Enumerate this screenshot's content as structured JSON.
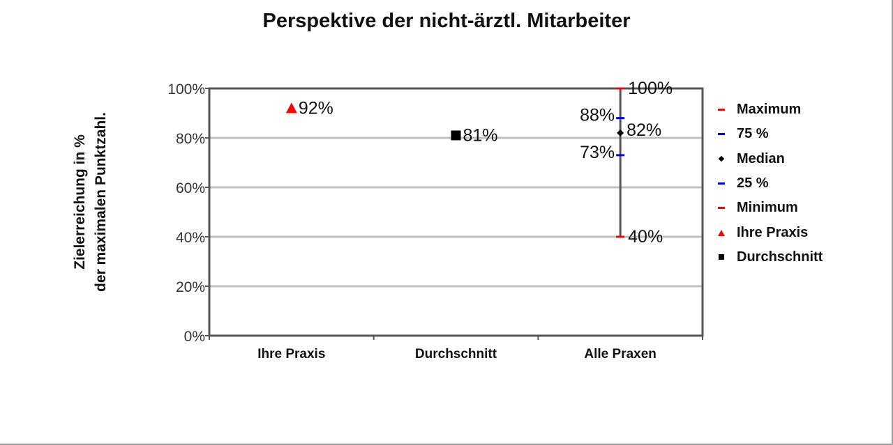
{
  "chart_data": {
    "type": "scatter",
    "title": "Perspektive der nicht-ärztl. Mitarbeiter",
    "ylabel_lines": [
      "Zielerreichung in %",
      "der maximalen Punktzahl."
    ],
    "xlabel": "",
    "categories": [
      "Ihre Praxis",
      "Durchschnitt",
      "Alle Praxen"
    ],
    "ylim": [
      0,
      100
    ],
    "y_ticks": [
      0,
      20,
      40,
      60,
      80,
      100
    ],
    "y_tick_labels": [
      "0%",
      "20%",
      "40%",
      "60%",
      "80%",
      "100%"
    ],
    "grid": true,
    "legend_position": "right",
    "series": [
      {
        "name": "Maximum",
        "category": "Alle Praxen",
        "value": 100,
        "label": "100%",
        "marker": "dash",
        "color": "#ff0000"
      },
      {
        "name": "75 %",
        "category": "Alle Praxen",
        "value": 88,
        "label": "88%",
        "marker": "dash",
        "color": "#0000ff"
      },
      {
        "name": "Median",
        "category": "Alle Praxen",
        "value": 82,
        "label": "82%",
        "marker": "diamond",
        "color": "#000000"
      },
      {
        "name": "25 %",
        "category": "Alle Praxen",
        "value": 73,
        "label": "73%",
        "marker": "dash",
        "color": "#0000ff"
      },
      {
        "name": "Minimum",
        "category": "Alle Praxen",
        "value": 40,
        "label": "40%",
        "marker": "dash",
        "color": "#ff0000"
      },
      {
        "name": "Ihre Praxis",
        "category": "Ihre Praxis",
        "value": 92,
        "label": "92%",
        "marker": "triangle",
        "color": "#ff0000"
      },
      {
        "name": "Durchschnitt",
        "category": "Durchschnitt",
        "value": 81,
        "label": "81%",
        "marker": "square",
        "color": "#000000"
      }
    ],
    "range_line": {
      "category": "Alle Praxen",
      "from": 40,
      "to": 100,
      "color": "#555555"
    }
  }
}
